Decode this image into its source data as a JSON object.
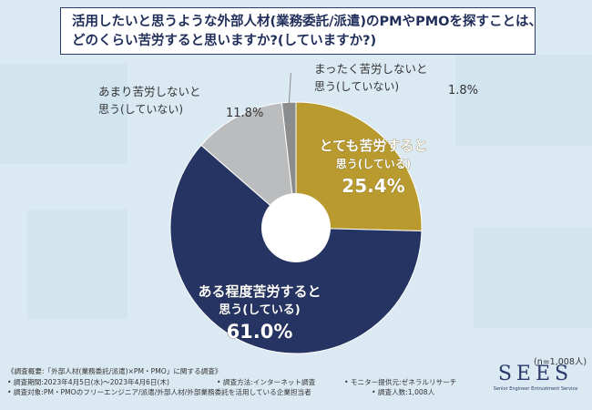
{
  "title": {
    "line1": "活用したいと思うような外部人材(業務委託/派遣)のPMやPMOを探すことは、",
    "line2": "どのくらい苦労すると思いますか?(していますか?)"
  },
  "chart_data": {
    "type": "pie",
    "title": "活用したいと思うような外部人材(業務委託/派遣)のPMやPMOを探すことは、どのくらい苦労すると思いますか?(していますか?)",
    "slices": [
      {
        "label_line1": "とても苦労すると",
        "label_line2": "思う(している)",
        "value": 25.4,
        "value_label": "25.4%",
        "color": "#b99a2e"
      },
      {
        "label_line1": "ある程度苦労すると",
        "label_line2": "思う(している)",
        "value": 61.0,
        "value_label": "61.0%",
        "color": "#263463"
      },
      {
        "label_line1": "あまり苦労しないと",
        "label_line2": "思う(していない)",
        "value": 11.8,
        "value_label": "11.8%",
        "color": "#bbbcbe"
      },
      {
        "label_line1": "まったく苦労しないと",
        "label_line2": "思う(していない)",
        "value": 1.8,
        "value_label": "1.8%",
        "color": "#8b8c8e"
      }
    ],
    "start": "12 o'clock",
    "direction": "clockwise",
    "donut_hole": true
  },
  "note": "(n=1,008人)",
  "footer": {
    "overview": "《調査概要:「外部人材(業務委託/派遣)×PM・PMO」に関する調査》",
    "period": "• 調査期間:2023年4月5日(水)〜2023年4月6日(木)",
    "method": "• 調査方法:インターネット調査",
    "provider": "• モニター提供元:ゼネラルリサーチ",
    "target": "• 調査対象:PM・PMOのフリーエンジニア/派遣/外部人材/外部業務委託を活用している企業担当者",
    "count": "• 調査人数:1,008人"
  },
  "logo": {
    "main": "SEES",
    "sub": "Senior Engineer Entrustment Service"
  }
}
